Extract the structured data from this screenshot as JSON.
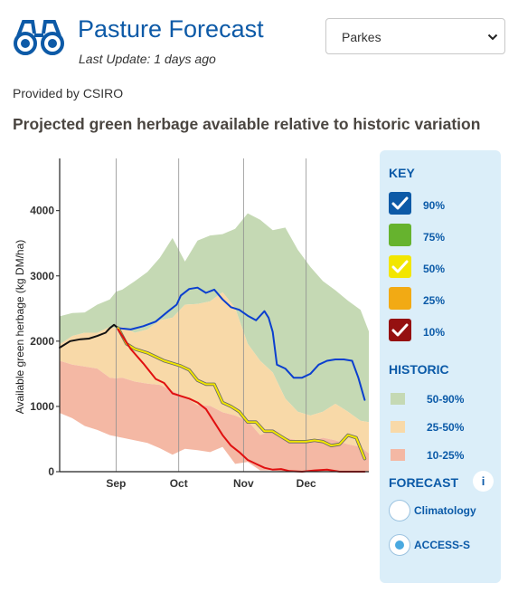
{
  "header": {
    "title": "Pasture Forecast",
    "last_update_label": "Last Update:",
    "last_update_value": "1 days ago",
    "location": "Parkes",
    "provided_by": "Provided by CSIRO",
    "heading": "Projected green herbage available relative to historic variation",
    "icon": "binoculars-icon",
    "brand_color": "#0d5aa7"
  },
  "chart_data": {
    "type": "area",
    "ylabel": "Available green herbage (kg DM/ha)",
    "xlabel": "",
    "x_unit": "day index from start of August",
    "xlim": [
      0,
      148
    ],
    "ylim": [
      0,
      4800
    ],
    "yticks": [
      0,
      1000,
      2000,
      3000,
      4000
    ],
    "month_ticks": [
      {
        "label": "Sep",
        "day": 27
      },
      {
        "label": "Oct",
        "day": 57
      },
      {
        "label": "Nov",
        "day": 88
      },
      {
        "label": "Dec",
        "day": 118
      }
    ],
    "grid": "vertical lines at month ticks",
    "x": [
      0,
      6,
      12,
      18,
      24,
      27,
      30,
      36,
      42,
      48,
      54,
      60,
      66,
      72,
      78,
      84,
      90,
      96,
      102,
      108,
      114,
      120,
      126,
      132,
      138,
      144,
      148
    ],
    "bands": [
      {
        "name": "50-90%",
        "color": "#c5d9b4",
        "lower": [
          1950,
          2080,
          2130,
          2130,
          2220,
          2200,
          2220,
          2130,
          2180,
          2320,
          2360,
          2560,
          2570,
          2610,
          2750,
          2510,
          1960,
          1700,
          1520,
          1120,
          920,
          860,
          920,
          1040,
          920,
          780,
          760
        ],
        "upper": [
          2380,
          2430,
          2440,
          2560,
          2640,
          2760,
          2790,
          2920,
          3060,
          3280,
          3580,
          3220,
          3540,
          3620,
          3640,
          3720,
          3960,
          3860,
          3700,
          3740,
          3400,
          3140,
          2920,
          2780,
          2620,
          2480,
          2150
        ]
      },
      {
        "name": "25-50%",
        "color": "#f8d9a8",
        "lower": [
          1700,
          1640,
          1610,
          1580,
          1440,
          1430,
          1440,
          1380,
          1350,
          1330,
          1240,
          1140,
          1020,
          1010,
          910,
          860,
          780,
          560,
          640,
          520,
          480,
          460,
          520,
          480,
          420,
          380,
          280
        ],
        "upper": [
          1950,
          2080,
          2130,
          2130,
          2220,
          2200,
          2220,
          2130,
          2180,
          2320,
          2360,
          2560,
          2570,
          2610,
          2750,
          2510,
          1960,
          1700,
          1520,
          1120,
          920,
          860,
          920,
          1040,
          920,
          780,
          760
        ]
      },
      {
        "name": "10-25%",
        "color": "#f4b8a4",
        "lower": [
          900,
          820,
          700,
          640,
          560,
          540,
          520,
          480,
          440,
          360,
          260,
          350,
          330,
          300,
          380,
          120,
          150,
          20,
          20,
          0,
          0,
          0,
          0,
          0,
          0,
          0,
          0
        ],
        "upper": [
          1700,
          1640,
          1610,
          1580,
          1440,
          1430,
          1440,
          1380,
          1350,
          1330,
          1240,
          1140,
          1020,
          1010,
          910,
          860,
          780,
          560,
          640,
          520,
          480,
          460,
          520,
          480,
          420,
          380,
          280
        ]
      }
    ],
    "series": [
      {
        "key": "observed",
        "color": "#111111",
        "points": [
          [
            0,
            1900
          ],
          [
            5,
            2000
          ],
          [
            10,
            2030
          ],
          [
            14,
            2040
          ],
          [
            18,
            2080
          ],
          [
            22,
            2130
          ],
          [
            24,
            2200
          ],
          [
            26,
            2250
          ],
          [
            28,
            2200
          ]
        ]
      },
      {
        "key": "90%",
        "color": "#0b3fcf",
        "points": [
          [
            28,
            2200
          ],
          [
            34,
            2180
          ],
          [
            40,
            2230
          ],
          [
            46,
            2300
          ],
          [
            52,
            2460
          ],
          [
            56,
            2560
          ],
          [
            58,
            2700
          ],
          [
            62,
            2800
          ],
          [
            66,
            2820
          ],
          [
            70,
            2740
          ],
          [
            74,
            2790
          ],
          [
            78,
            2640
          ],
          [
            82,
            2520
          ],
          [
            86,
            2480
          ],
          [
            90,
            2390
          ],
          [
            94,
            2320
          ],
          [
            98,
            2460
          ],
          [
            100,
            2360
          ],
          [
            102,
            2140
          ],
          [
            104,
            1640
          ],
          [
            108,
            1580
          ],
          [
            112,
            1440
          ],
          [
            116,
            1440
          ],
          [
            120,
            1500
          ],
          [
            124,
            1640
          ],
          [
            128,
            1700
          ],
          [
            132,
            1720
          ],
          [
            136,
            1720
          ],
          [
            140,
            1700
          ],
          [
            143,
            1440
          ],
          [
            146,
            1100
          ]
        ]
      },
      {
        "key": "50%",
        "color": "#f2e600",
        "outline": "#666666",
        "points": [
          [
            28,
            2200
          ],
          [
            32,
            1960
          ],
          [
            36,
            1880
          ],
          [
            42,
            1820
          ],
          [
            46,
            1760
          ],
          [
            50,
            1700
          ],
          [
            54,
            1660
          ],
          [
            58,
            1620
          ],
          [
            62,
            1560
          ],
          [
            66,
            1400
          ],
          [
            70,
            1340
          ],
          [
            74,
            1340
          ],
          [
            78,
            1060
          ],
          [
            82,
            1000
          ],
          [
            86,
            920
          ],
          [
            90,
            760
          ],
          [
            94,
            760
          ],
          [
            98,
            620
          ],
          [
            102,
            620
          ],
          [
            106,
            540
          ],
          [
            110,
            460
          ],
          [
            114,
            460
          ],
          [
            118,
            460
          ],
          [
            122,
            480
          ],
          [
            126,
            460
          ],
          [
            130,
            400
          ],
          [
            134,
            420
          ],
          [
            138,
            560
          ],
          [
            142,
            520
          ],
          [
            146,
            200
          ]
        ]
      },
      {
        "key": "10%",
        "color": "#e01010",
        "points": [
          [
            28,
            2180
          ],
          [
            34,
            1880
          ],
          [
            40,
            1660
          ],
          [
            46,
            1420
          ],
          [
            50,
            1360
          ],
          [
            54,
            1200
          ],
          [
            58,
            1160
          ],
          [
            62,
            1120
          ],
          [
            66,
            1060
          ],
          [
            70,
            960
          ],
          [
            74,
            760
          ],
          [
            78,
            560
          ],
          [
            82,
            400
          ],
          [
            86,
            300
          ],
          [
            90,
            180
          ],
          [
            94,
            120
          ],
          [
            98,
            60
          ],
          [
            102,
            30
          ],
          [
            106,
            40
          ],
          [
            110,
            10
          ],
          [
            116,
            0
          ],
          [
            122,
            20
          ],
          [
            128,
            30
          ],
          [
            134,
            0
          ],
          [
            140,
            0
          ],
          [
            146,
            0
          ]
        ]
      }
    ]
  },
  "key": {
    "title": "KEY",
    "items": [
      {
        "label": "90%",
        "color": "#0d5aa7",
        "checked": true
      },
      {
        "label": "75%",
        "color": "#66b32e",
        "checked": false
      },
      {
        "label": "50%",
        "color": "#f2e600",
        "checked": true
      },
      {
        "label": "25%",
        "color": "#f2aa14",
        "checked": false
      },
      {
        "label": "10%",
        "color": "#951010",
        "checked": true
      }
    ],
    "historic_title": "HISTORIC",
    "historic": [
      {
        "label": "50-90%",
        "color": "#c5d9b4"
      },
      {
        "label": "25-50%",
        "color": "#f8d9a8"
      },
      {
        "label": "10-25%",
        "color": "#f4b8a4"
      }
    ],
    "forecast_title": "FORECAST",
    "info_symbol": "i",
    "forecast_options": [
      {
        "label": "Climatology",
        "selected": false
      },
      {
        "label": "ACCESS-S",
        "selected": true
      }
    ]
  }
}
